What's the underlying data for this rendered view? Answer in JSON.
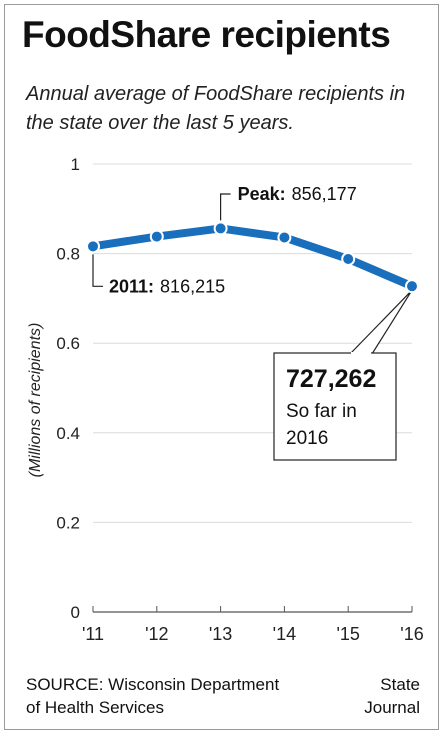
{
  "header": {
    "title": "FoodShare recipients",
    "subtitle": "Annual average of FoodShare recipients in the state over the last 5 years."
  },
  "chart_data": {
    "type": "line",
    "title": "FoodShare recipients",
    "subtitle": "Annual average of FoodShare recipients in the state over the last 5 years.",
    "xlabel": "",
    "ylabel": "(Millions of recipients)",
    "categories": [
      "'11",
      "'12",
      "'13",
      "'14",
      "'15",
      "'16"
    ],
    "series": [
      {
        "values": [
          0.816215,
          0.838,
          0.856177,
          0.836,
          0.788,
          0.727262
        ]
      }
    ],
    "ylim": [
      0,
      1
    ],
    "yticks": [
      {
        "value": 0,
        "label": "0"
      },
      {
        "value": 0.2,
        "label": "0.2"
      },
      {
        "value": 0.4,
        "label": "0.4"
      },
      {
        "value": 0.6,
        "label": "0.6"
      },
      {
        "value": 0.8,
        "label": "0.8"
      },
      {
        "value": 1,
        "label": "1"
      }
    ],
    "grid": true,
    "colors": {
      "line": "#1a6fbd",
      "grid": "#dcdcdc",
      "axis": "#555555"
    },
    "annotations": {
      "start": {
        "bold": "2011:",
        "text": "816,215"
      },
      "peak": {
        "bold": "Peak:",
        "text": "856,177"
      },
      "end": {
        "bold": "727,262",
        "line1": "So far in",
        "line2": "2016"
      }
    }
  },
  "footer": {
    "source_line1": "SOURCE: Wisconsin Department",
    "source_line2": "of Health Services",
    "credit_line1": "State",
    "credit_line2": "Journal"
  }
}
